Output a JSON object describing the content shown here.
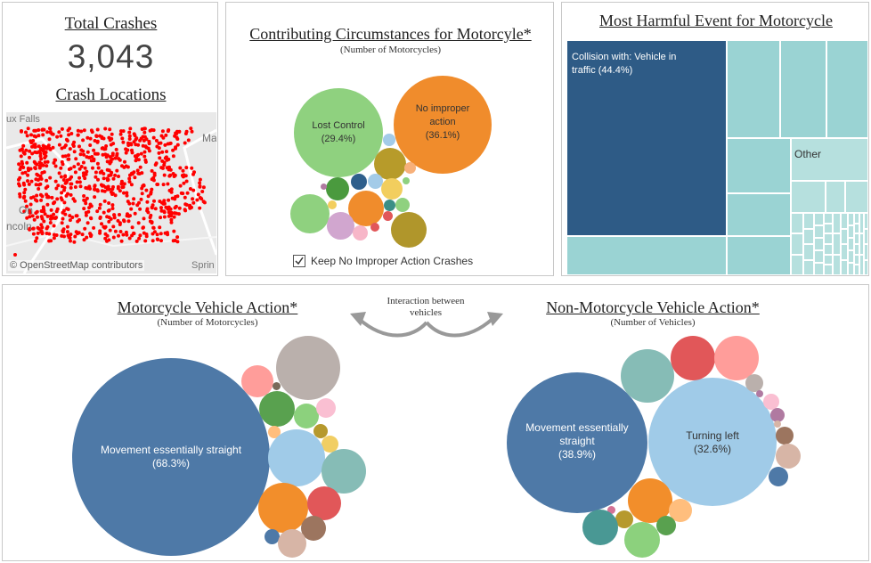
{
  "kpi": {
    "total_title": "Total Crashes",
    "total_value": "3,043",
    "locations_title": "Crash Locations",
    "map_labels": [
      "ux Falls",
      "Ma",
      "On",
      "ncoln",
      "Sprin"
    ],
    "map_attribution": "© OpenStreetMap contributors"
  },
  "contributing": {
    "title": "Contributing Circumstances for Motorcyle*",
    "subtitle": "(Number of Motorcycles)",
    "bubble_lost_control": "Lost Control",
    "bubble_lost_control_pct": "(29.4%)",
    "bubble_no_improper_1": "No improper",
    "bubble_no_improper_2": "action",
    "bubble_no_improper_pct": "(36.1%)",
    "checkbox_label": "Keep No Improper Action Crashes",
    "checkbox_checked": true
  },
  "harmful": {
    "title": "Most Harmful Event for Motorcycle",
    "main_label_1": "Collision with:  Vehicle in",
    "main_label_2": "traffic (44.4%)",
    "other_label": "Other",
    "colors": {
      "dark": "#2e5b86",
      "teal": "#9ad3d3",
      "light": "#b6e0de"
    }
  },
  "interaction": {
    "line1": "Interaction between",
    "line2": "vehicles"
  },
  "moto_action": {
    "title": "Motorcycle Vehicle Action*",
    "subtitle": "(Number of Motorcycles)",
    "main_1": "Movement essentially straight",
    "main_pct": "(68.3%)"
  },
  "nonmoto_action": {
    "title": "Non-Motorcycle Vehicle Action*",
    "subtitle": "(Number of Vehicles)",
    "main_1": "Movement essentially",
    "main_2": "straight",
    "main_pct": "(38.9%)",
    "second_1": "Turning left",
    "second_pct": "(32.6%)"
  }
}
